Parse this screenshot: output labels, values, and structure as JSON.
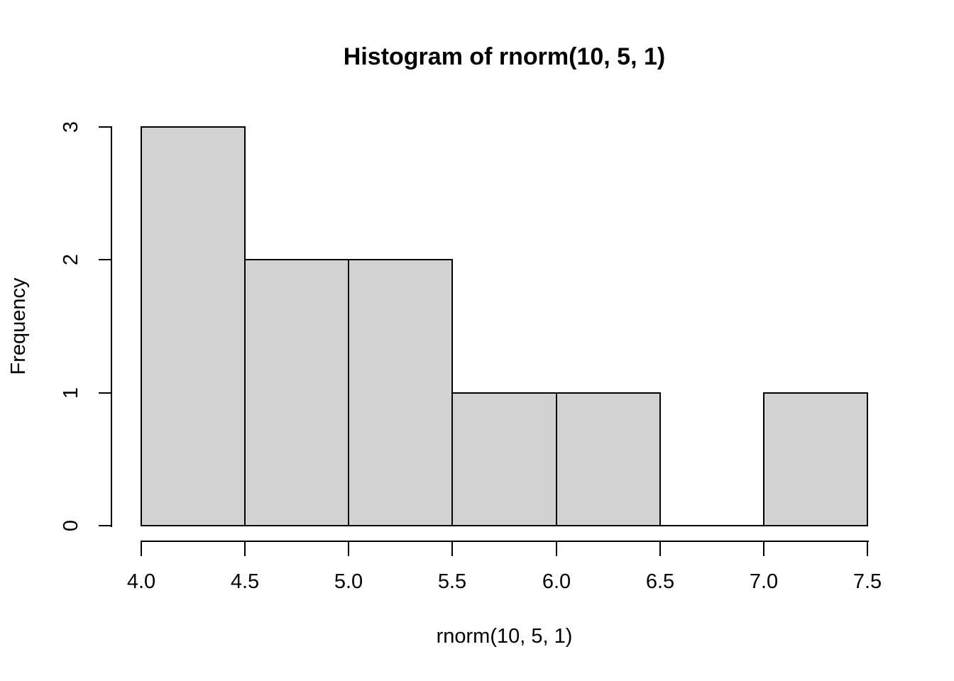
{
  "chart_data": {
    "type": "bar",
    "subtype": "histogram",
    "title": "Histogram of rnorm(10, 5, 1)",
    "xlabel": "rnorm(10, 5, 1)",
    "ylabel": "Frequency",
    "bins": [
      {
        "start": 4.0,
        "end": 4.5,
        "count": 3
      },
      {
        "start": 4.5,
        "end": 5.0,
        "count": 2
      },
      {
        "start": 5.0,
        "end": 5.5,
        "count": 2
      },
      {
        "start": 5.5,
        "end": 6.0,
        "count": 1
      },
      {
        "start": 6.0,
        "end": 6.5,
        "count": 1
      },
      {
        "start": 6.5,
        "end": 7.0,
        "count": 0
      },
      {
        "start": 7.0,
        "end": 7.5,
        "count": 1
      }
    ],
    "categories": [
      "4.0-4.5",
      "4.5-5.0",
      "5.0-5.5",
      "5.5-6.0",
      "6.0-6.5",
      "6.5-7.0",
      "7.0-7.5"
    ],
    "values": [
      3,
      2,
      2,
      1,
      1,
      0,
      1
    ],
    "x_ticks": [
      "4.0",
      "4.5",
      "5.0",
      "5.5",
      "6.0",
      "6.5",
      "7.0",
      "7.5"
    ],
    "y_ticks": [
      "0",
      "1",
      "2",
      "3"
    ],
    "xlim": [
      4.0,
      7.5
    ],
    "ylim": [
      0,
      3
    ],
    "bin_width": 0.5,
    "grid": false,
    "legend": false,
    "bar_fill_color": "#D3D3D3",
    "bar_border_color": "#000000",
    "axis_color": "#000000",
    "background_color": "#FFFFFF"
  }
}
